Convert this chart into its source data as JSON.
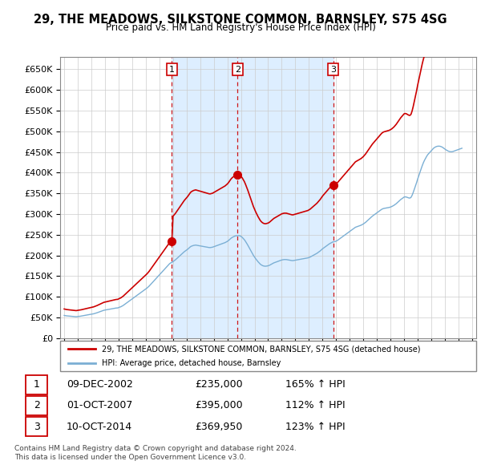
{
  "title": "29, THE MEADOWS, SILKSTONE COMMON, BARNSLEY, S75 4SG",
  "subtitle": "Price paid vs. HM Land Registry's House Price Index (HPI)",
  "hpi_line_color": "#7bafd4",
  "price_line_color": "#cc0000",
  "marker_color": "#cc0000",
  "ylim": [
    0,
    680000
  ],
  "yticks": [
    0,
    50000,
    100000,
    150000,
    200000,
    250000,
    300000,
    350000,
    400000,
    450000,
    500000,
    550000,
    600000,
    650000
  ],
  "xlim_start": 1994.7,
  "xlim_end": 2025.3,
  "sale_points": [
    {
      "year": 2002.92,
      "price": 235000,
      "label": "1"
    },
    {
      "year": 2007.75,
      "price": 395000,
      "label": "2"
    },
    {
      "year": 2014.78,
      "price": 369950,
      "label": "3"
    }
  ],
  "legend_entry1": "29, THE MEADOWS, SILKSTONE COMMON, BARNSLEY, S75 4SG (detached house)",
  "legend_entry2": "HPI: Average price, detached house, Barnsley",
  "table_rows": [
    [
      "1",
      "09-DEC-2002",
      "£235,000",
      "165% ↑ HPI"
    ],
    [
      "2",
      "01-OCT-2007",
      "£395,000",
      "112% ↑ HPI"
    ],
    [
      "3",
      "10-OCT-2014",
      "£369,950",
      "123% ↑ HPI"
    ]
  ],
  "footnote1": "Contains HM Land Registry data © Crown copyright and database right 2024.",
  "footnote2": "This data is licensed under the Open Government Licence v3.0.",
  "shade_color": "#ddeeff",
  "hpi_data_years": [
    1995.0,
    1995.083,
    1995.167,
    1995.25,
    1995.333,
    1995.417,
    1995.5,
    1995.583,
    1995.667,
    1995.75,
    1995.833,
    1995.917,
    1996.0,
    1996.083,
    1996.167,
    1996.25,
    1996.333,
    1996.417,
    1996.5,
    1996.583,
    1996.667,
    1996.75,
    1996.833,
    1996.917,
    1997.0,
    1997.083,
    1997.167,
    1997.25,
    1997.333,
    1997.417,
    1997.5,
    1997.583,
    1997.667,
    1997.75,
    1997.833,
    1997.917,
    1998.0,
    1998.083,
    1998.167,
    1998.25,
    1998.333,
    1998.417,
    1998.5,
    1998.583,
    1998.667,
    1998.75,
    1998.833,
    1998.917,
    1999.0,
    1999.083,
    1999.167,
    1999.25,
    1999.333,
    1999.417,
    1999.5,
    1999.583,
    1999.667,
    1999.75,
    1999.833,
    1999.917,
    2000.0,
    2000.083,
    2000.167,
    2000.25,
    2000.333,
    2000.417,
    2000.5,
    2000.583,
    2000.667,
    2000.75,
    2000.833,
    2000.917,
    2001.0,
    2001.083,
    2001.167,
    2001.25,
    2001.333,
    2001.417,
    2001.5,
    2001.583,
    2001.667,
    2001.75,
    2001.833,
    2001.917,
    2002.0,
    2002.083,
    2002.167,
    2002.25,
    2002.333,
    2002.417,
    2002.5,
    2002.583,
    2002.667,
    2002.75,
    2002.833,
    2002.917,
    2003.0,
    2003.083,
    2003.167,
    2003.25,
    2003.333,
    2003.417,
    2003.5,
    2003.583,
    2003.667,
    2003.75,
    2003.833,
    2003.917,
    2004.0,
    2004.083,
    2004.167,
    2004.25,
    2004.333,
    2004.417,
    2004.5,
    2004.583,
    2004.667,
    2004.75,
    2004.833,
    2004.917,
    2005.0,
    2005.083,
    2005.167,
    2005.25,
    2005.333,
    2005.417,
    2005.5,
    2005.583,
    2005.667,
    2005.75,
    2005.833,
    2005.917,
    2006.0,
    2006.083,
    2006.167,
    2006.25,
    2006.333,
    2006.417,
    2006.5,
    2006.583,
    2006.667,
    2006.75,
    2006.833,
    2006.917,
    2007.0,
    2007.083,
    2007.167,
    2007.25,
    2007.333,
    2007.417,
    2007.5,
    2007.583,
    2007.667,
    2007.75,
    2007.833,
    2007.917,
    2008.0,
    2008.083,
    2008.167,
    2008.25,
    2008.333,
    2008.417,
    2008.5,
    2008.583,
    2008.667,
    2008.75,
    2008.833,
    2008.917,
    2009.0,
    2009.083,
    2009.167,
    2009.25,
    2009.333,
    2009.417,
    2009.5,
    2009.583,
    2009.667,
    2009.75,
    2009.833,
    2009.917,
    2010.0,
    2010.083,
    2010.167,
    2010.25,
    2010.333,
    2010.417,
    2010.5,
    2010.583,
    2010.667,
    2010.75,
    2010.833,
    2010.917,
    2011.0,
    2011.083,
    2011.167,
    2011.25,
    2011.333,
    2011.417,
    2011.5,
    2011.583,
    2011.667,
    2011.75,
    2011.833,
    2011.917,
    2012.0,
    2012.083,
    2012.167,
    2012.25,
    2012.333,
    2012.417,
    2012.5,
    2012.583,
    2012.667,
    2012.75,
    2012.833,
    2012.917,
    2013.0,
    2013.083,
    2013.167,
    2013.25,
    2013.333,
    2013.417,
    2013.5,
    2013.583,
    2013.667,
    2013.75,
    2013.833,
    2013.917,
    2014.0,
    2014.083,
    2014.167,
    2014.25,
    2014.333,
    2014.417,
    2014.5,
    2014.583,
    2014.667,
    2014.75,
    2014.833,
    2014.917,
    2015.0,
    2015.083,
    2015.167,
    2015.25,
    2015.333,
    2015.417,
    2015.5,
    2015.583,
    2015.667,
    2015.75,
    2015.833,
    2015.917,
    2016.0,
    2016.083,
    2016.167,
    2016.25,
    2016.333,
    2016.417,
    2016.5,
    2016.583,
    2016.667,
    2016.75,
    2016.833,
    2016.917,
    2017.0,
    2017.083,
    2017.167,
    2017.25,
    2017.333,
    2017.417,
    2017.5,
    2017.583,
    2017.667,
    2017.75,
    2017.833,
    2017.917,
    2018.0,
    2018.083,
    2018.167,
    2018.25,
    2018.333,
    2018.417,
    2018.5,
    2018.583,
    2018.667,
    2018.75,
    2018.833,
    2018.917,
    2019.0,
    2019.083,
    2019.167,
    2019.25,
    2019.333,
    2019.417,
    2019.5,
    2019.583,
    2019.667,
    2019.75,
    2019.833,
    2019.917,
    2020.0,
    2020.083,
    2020.167,
    2020.25,
    2020.333,
    2020.417,
    2020.5,
    2020.583,
    2020.667,
    2020.75,
    2020.833,
    2020.917,
    2021.0,
    2021.083,
    2021.167,
    2021.25,
    2021.333,
    2021.417,
    2021.5,
    2021.583,
    2021.667,
    2021.75,
    2021.833,
    2021.917,
    2022.0,
    2022.083,
    2022.167,
    2022.25,
    2022.333,
    2022.417,
    2022.5,
    2022.583,
    2022.667,
    2022.75,
    2022.833,
    2022.917,
    2023.0,
    2023.083,
    2023.167,
    2023.25,
    2023.333,
    2023.417,
    2023.5,
    2023.583,
    2023.667,
    2023.75,
    2023.833,
    2023.917,
    2024.0,
    2024.083,
    2024.167,
    2024.25
  ],
  "hpi_data_values": [
    55000,
    54500,
    54000,
    53800,
    53500,
    53200,
    53000,
    52800,
    52500,
    52300,
    52000,
    52000,
    52500,
    52800,
    53000,
    53500,
    54000,
    54500,
    55000,
    55500,
    56000,
    56500,
    57000,
    57500,
    58000,
    58500,
    59000,
    59800,
    60500,
    61500,
    62500,
    63500,
    64500,
    65500,
    66500,
    67500,
    68000,
    68500,
    69000,
    69500,
    70000,
    70500,
    71000,
    71500,
    72000,
    72500,
    73000,
    73000,
    74000,
    75000,
    76000,
    77500,
    79000,
    81000,
    83000,
    85000,
    87000,
    89000,
    91000,
    93000,
    95000,
    97000,
    99000,
    101000,
    103000,
    105000,
    107000,
    109000,
    111000,
    113000,
    115000,
    117000,
    119000,
    121000,
    123500,
    126000,
    129000,
    132000,
    135000,
    138000,
    141000,
    144000,
    147000,
    150000,
    153000,
    156000,
    159000,
    162000,
    165000,
    168000,
    171000,
    174000,
    177000,
    180000,
    182000,
    183000,
    185000,
    187000,
    189000,
    191500,
    194000,
    196500,
    199000,
    201500,
    204000,
    206500,
    209000,
    211000,
    213000,
    215000,
    217500,
    220000,
    222000,
    223000,
    224000,
    224500,
    225000,
    224500,
    224000,
    223500,
    223000,
    222500,
    222000,
    221500,
    221000,
    220500,
    220000,
    219500,
    219000,
    219000,
    219500,
    220000,
    221000,
    222000,
    223000,
    224000,
    225000,
    226000,
    227000,
    228000,
    229000,
    230000,
    231000,
    232500,
    234000,
    236000,
    238500,
    241000,
    243000,
    244500,
    246000,
    247000,
    247500,
    248000,
    248000,
    247500,
    246000,
    244000,
    241000,
    238000,
    234000,
    229500,
    225000,
    220000,
    215000,
    210000,
    205000,
    200000,
    196000,
    192000,
    188500,
    185000,
    182000,
    179000,
    177000,
    175500,
    174500,
    174000,
    174000,
    174500,
    175000,
    176000,
    177500,
    179000,
    180500,
    182000,
    183000,
    184000,
    185000,
    186000,
    187000,
    188000,
    189000,
    189500,
    190000,
    190000,
    190000,
    189500,
    189000,
    188500,
    188000,
    187500,
    187500,
    188000,
    188500,
    189000,
    189500,
    190000,
    190500,
    191000,
    191500,
    192000,
    192500,
    193000,
    193500,
    194000,
    195000,
    196000,
    197500,
    199000,
    200500,
    202000,
    203500,
    205000,
    207000,
    209000,
    211000,
    213500,
    216000,
    218000,
    220000,
    222000,
    224000,
    226000,
    228000,
    229500,
    231000,
    232500,
    233000,
    233500,
    234500,
    236000,
    238000,
    240000,
    242000,
    244000,
    246000,
    248000,
    250000,
    252000,
    254000,
    256000,
    258000,
    260000,
    262000,
    264000,
    266000,
    268000,
    269000,
    270000,
    271000,
    272000,
    273000,
    274500,
    276000,
    278000,
    280000,
    282500,
    285000,
    287500,
    290000,
    292500,
    295000,
    297000,
    299000,
    301000,
    303000,
    305000,
    307000,
    309000,
    311000,
    312500,
    313500,
    314000,
    314500,
    315000,
    315500,
    316000,
    317000,
    318000,
    319500,
    321000,
    323000,
    325000,
    327500,
    330000,
    332500,
    335000,
    337000,
    339000,
    341000,
    341500,
    341000,
    340000,
    339000,
    338500,
    340000,
    345000,
    352000,
    360000,
    368000,
    376000,
    385000,
    393000,
    401000,
    409000,
    417000,
    424000,
    430000,
    435000,
    440000,
    444000,
    447000,
    450000,
    453000,
    456000,
    459000,
    461000,
    462500,
    463500,
    464000,
    464000,
    463500,
    462500,
    461000,
    459000,
    457000,
    455000,
    453500,
    452000,
    451000,
    450500,
    450500,
    451000,
    452000,
    453000,
    454000,
    455000,
    456000,
    457000,
    458000,
    459000
  ]
}
